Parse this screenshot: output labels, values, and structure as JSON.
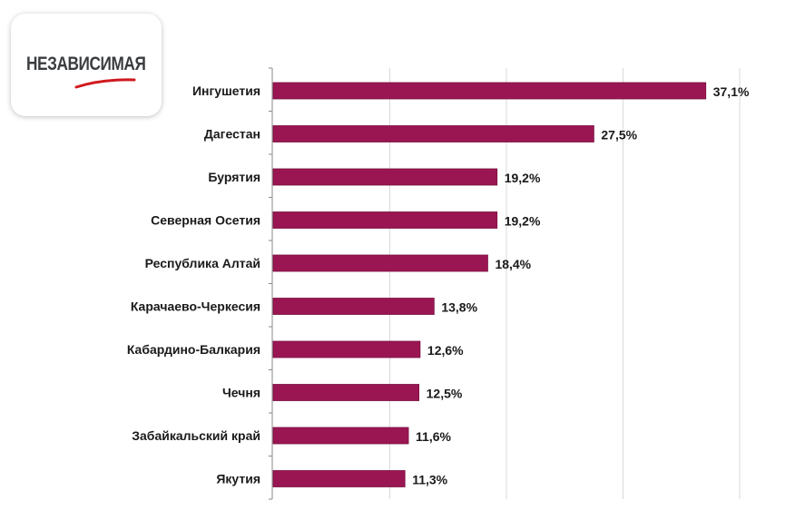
{
  "logo": {
    "text": "НЕЗАВИСИМАЯ"
  },
  "colors": {
    "bar": "#9a1652",
    "grid": "#d9d9d9",
    "axis": "#888888"
  },
  "chart_data": {
    "type": "bar",
    "orientation": "horizontal",
    "categories": [
      "Ингушетия",
      "Дагестан",
      "Бурятия",
      "Северная Осетия",
      "Республика Алтай",
      "Карачаево-Черкесия",
      "Кабардино-Балкария",
      "Чечня",
      "Забайкальский край",
      "Якутия"
    ],
    "values": [
      37.1,
      27.5,
      19.2,
      19.2,
      18.4,
      13.8,
      12.6,
      12.5,
      11.6,
      11.3
    ],
    "labels": [
      "37,1%",
      "27,5%",
      "19,2%",
      "19,2%",
      "18,4%",
      "13,8%",
      "12,6%",
      "12,5%",
      "11,6%",
      "11,3%"
    ],
    "xlim": [
      0,
      40
    ],
    "gridlines": [
      10,
      20,
      30,
      40
    ],
    "grid": true,
    "title": "",
    "xlabel": "",
    "ylabel": ""
  }
}
